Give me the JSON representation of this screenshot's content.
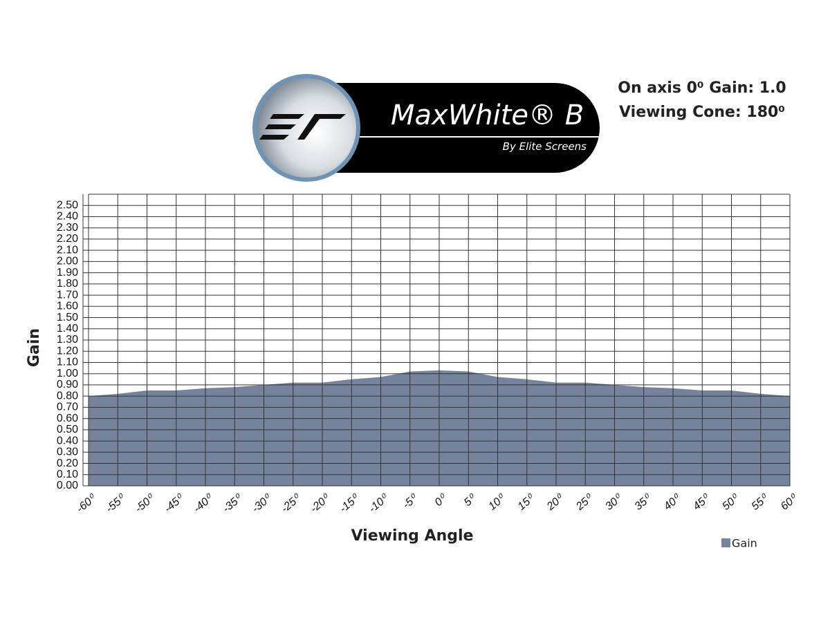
{
  "logo": {
    "title": "MaxWhite® B",
    "subtitle": "By Elite Screens"
  },
  "chart_data": {
    "type": "area",
    "annotations": [
      "On axis 0⁰ Gain: 1.0",
      "Viewing Cone: 180⁰"
    ],
    "x_label": "Viewing Angle",
    "y_label": "Gain",
    "x": [
      -60,
      -55,
      -50,
      -45,
      -40,
      -35,
      -30,
      -25,
      -20,
      -15,
      -10,
      -5,
      0,
      5,
      10,
      15,
      20,
      25,
      30,
      35,
      40,
      45,
      50,
      55,
      60
    ],
    "series": [
      {
        "name": "Gain",
        "color": "#75849c",
        "values": [
          0.8,
          0.82,
          0.85,
          0.85,
          0.87,
          0.88,
          0.9,
          0.92,
          0.92,
          0.95,
          0.97,
          1.02,
          1.03,
          1.02,
          0.97,
          0.95,
          0.92,
          0.92,
          0.9,
          0.88,
          0.87,
          0.85,
          0.85,
          0.82,
          0.8
        ]
      }
    ],
    "xlim": [
      -60,
      60
    ],
    "xticks": [
      {
        "value": -60,
        "label": "-60⁰"
      },
      {
        "value": -55,
        "label": "-55⁰"
      },
      {
        "value": -50,
        "label": "-50⁰"
      },
      {
        "value": -45,
        "label": "-45⁰"
      },
      {
        "value": -40,
        "label": "-40⁰"
      },
      {
        "value": -35,
        "label": "-35⁰"
      },
      {
        "value": -30,
        "label": "-30⁰"
      },
      {
        "value": -25,
        "label": "-25⁰"
      },
      {
        "value": -20,
        "label": "-20⁰"
      },
      {
        "value": -15,
        "label": "-15⁰"
      },
      {
        "value": -10,
        "label": "-10⁰"
      },
      {
        "value": -5,
        "label": "-5⁰"
      },
      {
        "value": 0,
        "label": "0⁰"
      },
      {
        "value": 5,
        "label": "5⁰"
      },
      {
        "value": 10,
        "label": "10⁰"
      },
      {
        "value": 15,
        "label": "15⁰"
      },
      {
        "value": 20,
        "label": "20⁰"
      },
      {
        "value": 25,
        "label": "25⁰"
      },
      {
        "value": 30,
        "label": "30⁰"
      },
      {
        "value": 35,
        "label": "35⁰"
      },
      {
        "value": 40,
        "label": "40⁰"
      },
      {
        "value": 45,
        "label": "45⁰"
      },
      {
        "value": 50,
        "label": "50⁰"
      },
      {
        "value": 55,
        "label": "55⁰"
      },
      {
        "value": 60,
        "label": "60⁰"
      }
    ],
    "ylim": [
      0,
      2.6
    ],
    "yticks": [
      {
        "value": 0,
        "label": "0.00"
      },
      {
        "value": 0.1,
        "label": "0.10"
      },
      {
        "value": 0.2,
        "label": "0.20"
      },
      {
        "value": 0.3,
        "label": "0.30"
      },
      {
        "value": 0.4,
        "label": "0.40"
      },
      {
        "value": 0.5,
        "label": "0.50"
      },
      {
        "value": 0.6,
        "label": "0.60"
      },
      {
        "value": 0.7,
        "label": "0.70"
      },
      {
        "value": 0.8,
        "label": "0.80"
      },
      {
        "value": 0.9,
        "label": "0.90"
      },
      {
        "value": 1.0,
        "label": "1.00"
      },
      {
        "value": 1.1,
        "label": "1.10"
      },
      {
        "value": 1.2,
        "label": "1.20"
      },
      {
        "value": 1.3,
        "label": "1.30"
      },
      {
        "value": 1.4,
        "label": "1.40"
      },
      {
        "value": 1.5,
        "label": "1.50"
      },
      {
        "value": 1.6,
        "label": "1.60"
      },
      {
        "value": 1.7,
        "label": "1.70"
      },
      {
        "value": 1.8,
        "label": "1.80"
      },
      {
        "value": 1.9,
        "label": "1.90"
      },
      {
        "value": 2.0,
        "label": "2.00"
      },
      {
        "value": 2.1,
        "label": "2.10"
      },
      {
        "value": 2.2,
        "label": "2.20"
      },
      {
        "value": 2.3,
        "label": "2.30"
      },
      {
        "value": 2.4,
        "label": "2.40"
      },
      {
        "value": 2.5,
        "label": "2.50"
      }
    ],
    "grid": true,
    "legend": "bottom-right"
  }
}
